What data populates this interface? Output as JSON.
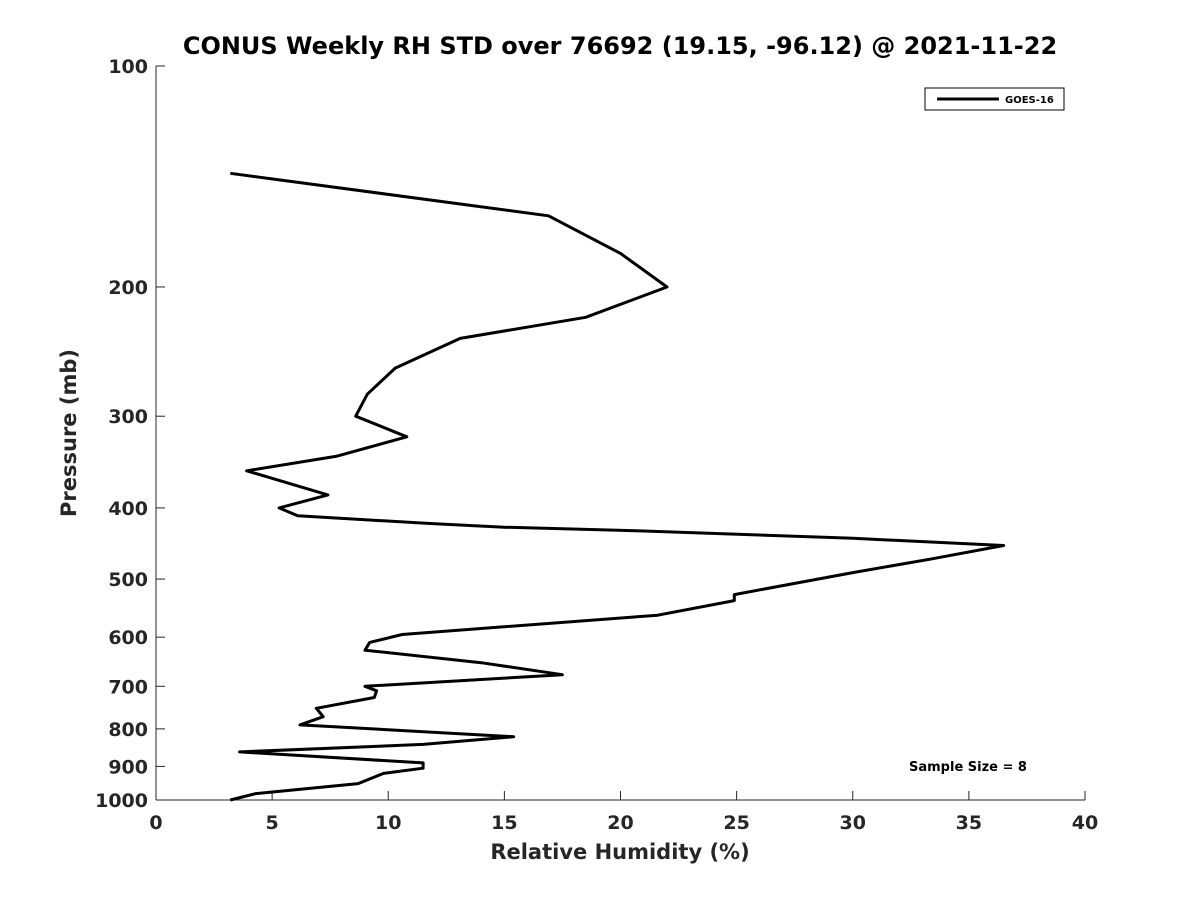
{
  "chart_data": {
    "type": "line",
    "title": "CONUS Weekly RH STD over 76692 (19.15, -96.12) @ 2021-11-22",
    "xlabel": "Relative Humidity (%)",
    "ylabel": "Pressure (mb)",
    "xlim": [
      0,
      40
    ],
    "ylim": [
      100,
      1000
    ],
    "y_scale": "log",
    "y_reversed": true,
    "x_ticks": [
      "0",
      "5",
      "10",
      "15",
      "20",
      "25",
      "30",
      "35",
      "40"
    ],
    "y_ticks": [
      "100",
      "200",
      "300",
      "400",
      "500",
      "600",
      "700",
      "800",
      "900",
      "1000"
    ],
    "grid": false,
    "legend_position": "top-right",
    "annotation": "Sample Size = 8",
    "series": [
      {
        "name": "GOES-16",
        "color": "#000000",
        "points": [
          [
            3.2,
            1000
          ],
          [
            4.3,
            980
          ],
          [
            8.7,
            950
          ],
          [
            9.8,
            920
          ],
          [
            11.5,
            905
          ],
          [
            11.5,
            890
          ],
          [
            3.6,
            860
          ],
          [
            11.5,
            840
          ],
          [
            15.4,
            820
          ],
          [
            6.2,
            790
          ],
          [
            7.2,
            770
          ],
          [
            6.9,
            750
          ],
          [
            9.4,
            725
          ],
          [
            9.5,
            710
          ],
          [
            9.0,
            700
          ],
          [
            17.5,
            675
          ],
          [
            14.0,
            650
          ],
          [
            9.0,
            625
          ],
          [
            9.2,
            610
          ],
          [
            10.6,
            595
          ],
          [
            21.6,
            560
          ],
          [
            24.9,
            535
          ],
          [
            24.9,
            525
          ],
          [
            30.0,
            490
          ],
          [
            33.3,
            470
          ],
          [
            36.5,
            450
          ],
          [
            30.0,
            440
          ],
          [
            21.0,
            430
          ],
          [
            15.0,
            425
          ],
          [
            11.8,
            420
          ],
          [
            6.1,
            410
          ],
          [
            5.3,
            400
          ],
          [
            7.4,
            384
          ],
          [
            3.9,
            356
          ],
          [
            7.8,
            340
          ],
          [
            10.8,
            320
          ],
          [
            8.6,
            300
          ],
          [
            9.1,
            280
          ],
          [
            10.3,
            258
          ],
          [
            13.1,
            235
          ],
          [
            18.5,
            220
          ],
          [
            22.0,
            200
          ],
          [
            20.0,
            180
          ],
          [
            16.9,
            160
          ],
          [
            3.2,
            140
          ]
        ]
      }
    ]
  }
}
